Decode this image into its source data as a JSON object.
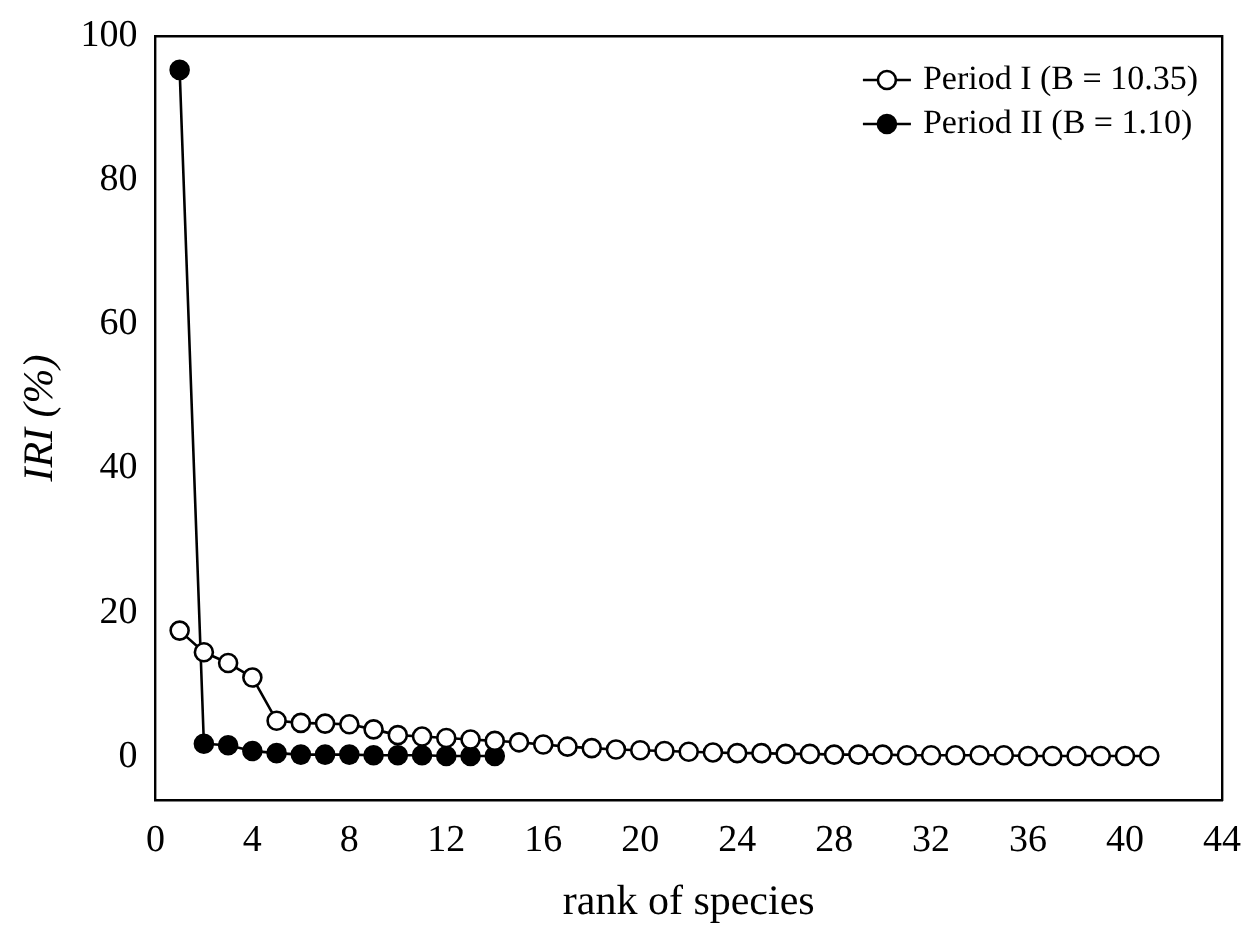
{
  "chart_data": {
    "type": "line",
    "xlabel": "rank of species",
    "ylabel": "IRI (%)",
    "xlim": [
      0,
      44
    ],
    "xticks": [
      0,
      4,
      8,
      12,
      16,
      20,
      24,
      28,
      32,
      36,
      40,
      44
    ],
    "ylim": [
      -6,
      100
    ],
    "yticks": [
      0,
      20,
      40,
      60,
      80,
      100
    ],
    "grid": false,
    "legend": "top right",
    "marker": "circle",
    "line_style": "solid",
    "series": [
      {
        "name": "Period I (B = 10.35)",
        "color": "#000000",
        "x": [
          1,
          2,
          3,
          4,
          5,
          6,
          7,
          8,
          9,
          10,
          11,
          12,
          13,
          14,
          15,
          16,
          17,
          18,
          19,
          20,
          21,
          22,
          23,
          24,
          25,
          26,
          27,
          28,
          29,
          30,
          31,
          32,
          33,
          34,
          35,
          36,
          37,
          38,
          39,
          40,
          41
        ],
        "values": [
          17.5,
          14.5,
          13,
          11,
          5,
          4.7,
          4.6,
          4.5,
          3.8,
          3,
          2.8,
          2.6,
          2.4,
          2.2,
          2,
          1.7,
          1.4,
          1.2,
          1,
          0.9,
          0.8,
          0.7,
          0.6,
          0.5,
          0.5,
          0.4,
          0.4,
          0.3,
          0.3,
          0.3,
          0.2,
          0.2,
          0.2,
          0.2,
          0.2,
          0.1,
          0.1,
          0.1,
          0.1,
          0.1,
          0.1
        ]
      },
      {
        "name": "Period II (B = 1.10)",
        "color": "#000000",
        "x": [
          1,
          2,
          3,
          4,
          5,
          6,
          7,
          8,
          9,
          10,
          11,
          12,
          13,
          14
        ],
        "values": [
          95.3,
          1.8,
          1.6,
          0.8,
          0.5,
          0.3,
          0.3,
          0.3,
          0.2,
          0.2,
          0.2,
          0.1,
          0.1,
          0.1
        ]
      }
    ]
  }
}
